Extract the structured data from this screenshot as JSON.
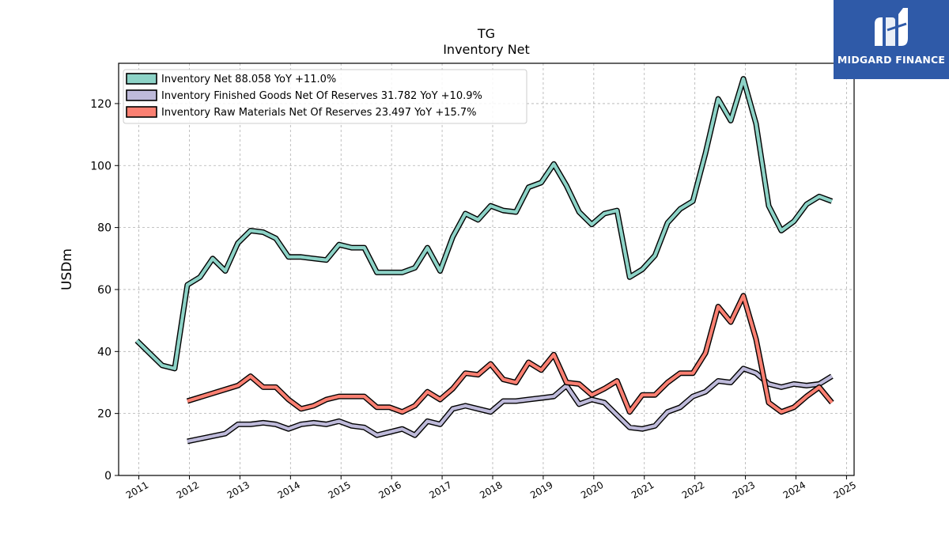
{
  "chart_data": {
    "type": "line",
    "title": "TG",
    "subtitle": "Inventory Net",
    "ylabel": "USDm",
    "xlabel": "",
    "xlim": [
      2010.6,
      2025.15
    ],
    "ylim": [
      0,
      133
    ],
    "x_ticks": [
      2011,
      2012,
      2013,
      2014,
      2015,
      2016,
      2017,
      2018,
      2019,
      2020,
      2021,
      2022,
      2023,
      2024,
      2025
    ],
    "y_ticks": [
      0,
      20,
      40,
      60,
      80,
      100,
      120
    ],
    "grid": true,
    "legend_position": "top-left",
    "series": [
      {
        "name": "Inventory Net  88.058 YoY +11.0%",
        "color": "#8dd3c7",
        "x": [
          2010.96,
          2011.21,
          2011.46,
          2011.71,
          2011.96,
          2012.21,
          2012.46,
          2012.71,
          2012.96,
          2013.21,
          2013.46,
          2013.71,
          2013.96,
          2014.21,
          2014.46,
          2014.71,
          2014.96,
          2015.21,
          2015.46,
          2015.71,
          2015.96,
          2016.21,
          2016.46,
          2016.71,
          2016.96,
          2017.21,
          2017.46,
          2017.71,
          2017.96,
          2018.21,
          2018.46,
          2018.71,
          2018.96,
          2019.21,
          2019.46,
          2019.71,
          2019.96,
          2020.21,
          2020.46,
          2020.71,
          2020.96,
          2021.21,
          2021.46,
          2021.71,
          2021.96,
          2022.21,
          2022.46,
          2022.71,
          2022.96,
          2023.21,
          2023.46,
          2023.71,
          2023.96,
          2024.21,
          2024.46,
          2024.71
        ],
        "values": [
          43.5,
          39.5,
          35.5,
          34.5,
          61.5,
          64,
          70,
          66,
          75,
          79,
          78.5,
          76.5,
          70.5,
          70.5,
          70,
          69.5,
          74.5,
          73.5,
          73.5,
          65.5,
          65.5,
          65.5,
          67,
          73.5,
          66,
          77,
          84.5,
          82.5,
          87,
          85.5,
          85,
          93,
          94.5,
          100.5,
          93.5,
          85,
          81,
          84.5,
          85.5,
          64,
          66.5,
          71,
          81.5,
          86,
          88.5,
          104,
          121.5,
          114.5,
          128,
          113.5,
          87,
          79,
          82,
          87.5,
          90,
          88.5
        ]
      },
      {
        "name": "Inventory Finished Goods Net Of Reserves  31.782 YoY +10.9%",
        "color": "#bebada",
        "x": [
          2011.96,
          2012.71,
          2012.96,
          2013.21,
          2013.46,
          2013.71,
          2013.96,
          2014.21,
          2014.46,
          2014.71,
          2014.96,
          2015.21,
          2015.46,
          2015.71,
          2015.96,
          2016.21,
          2016.46,
          2016.71,
          2016.96,
          2017.21,
          2017.46,
          2017.71,
          2017.96,
          2018.21,
          2018.46,
          2018.71,
          2018.96,
          2019.21,
          2019.46,
          2019.71,
          2019.96,
          2020.21,
          2020.46,
          2020.71,
          2020.96,
          2021.21,
          2021.46,
          2021.71,
          2021.96,
          2022.21,
          2022.46,
          2022.71,
          2022.96,
          2023.21,
          2023.46,
          2023.71,
          2023.96,
          2024.21,
          2024.46,
          2024.71
        ],
        "values": [
          11,
          13.5,
          16.5,
          16.5,
          17,
          16.5,
          15,
          16.5,
          17,
          16.5,
          17.5,
          16,
          15.5,
          13,
          14,
          15,
          13,
          17.5,
          16.5,
          21.5,
          22.5,
          21.5,
          20.5,
          24,
          24,
          24.5,
          25,
          25.5,
          29,
          23,
          24.5,
          23.5,
          19.5,
          15.5,
          15,
          16,
          20.5,
          22,
          25.5,
          27,
          30.5,
          30,
          34.5,
          33,
          29.5,
          28.5,
          29.5,
          29,
          29.5,
          32
        ]
      },
      {
        "name": "Inventory Raw Materials Net Of Reserves  23.497 YoY +15.7%",
        "color": "#fb8072",
        "x": [
          2011.96,
          2012.96,
          2013.21,
          2013.46,
          2013.71,
          2013.96,
          2014.21,
          2014.46,
          2014.71,
          2014.96,
          2015.21,
          2015.46,
          2015.71,
          2015.96,
          2016.21,
          2016.46,
          2016.71,
          2016.96,
          2017.21,
          2017.46,
          2017.71,
          2017.96,
          2018.21,
          2018.46,
          2018.71,
          2018.96,
          2019.21,
          2019.46,
          2019.71,
          2019.96,
          2020.21,
          2020.46,
          2020.71,
          2020.96,
          2021.21,
          2021.46,
          2021.71,
          2021.96,
          2022.21,
          2022.46,
          2022.71,
          2022.96,
          2023.21,
          2023.46,
          2023.71,
          2023.96,
          2024.21,
          2024.46,
          2024.71
        ],
        "values": [
          24,
          29,
          32,
          28.5,
          28.5,
          24.5,
          21.5,
          22.5,
          24.5,
          25.5,
          25.5,
          25.5,
          22,
          22,
          20.5,
          22.5,
          27,
          24.5,
          28,
          33,
          32.5,
          36,
          31,
          30,
          36.5,
          34,
          39,
          30,
          29.5,
          26,
          28,
          30.5,
          20.5,
          26,
          26,
          30,
          33,
          33,
          39.5,
          54.5,
          49.5,
          58,
          44,
          23.5,
          20.5,
          22,
          25.5,
          28.5,
          23.5
        ]
      }
    ]
  },
  "logo": {
    "text": "MIDGARD FINANCE",
    "icon": "midgard-m-logo-icon",
    "bg_color": "#2f5aa8"
  }
}
